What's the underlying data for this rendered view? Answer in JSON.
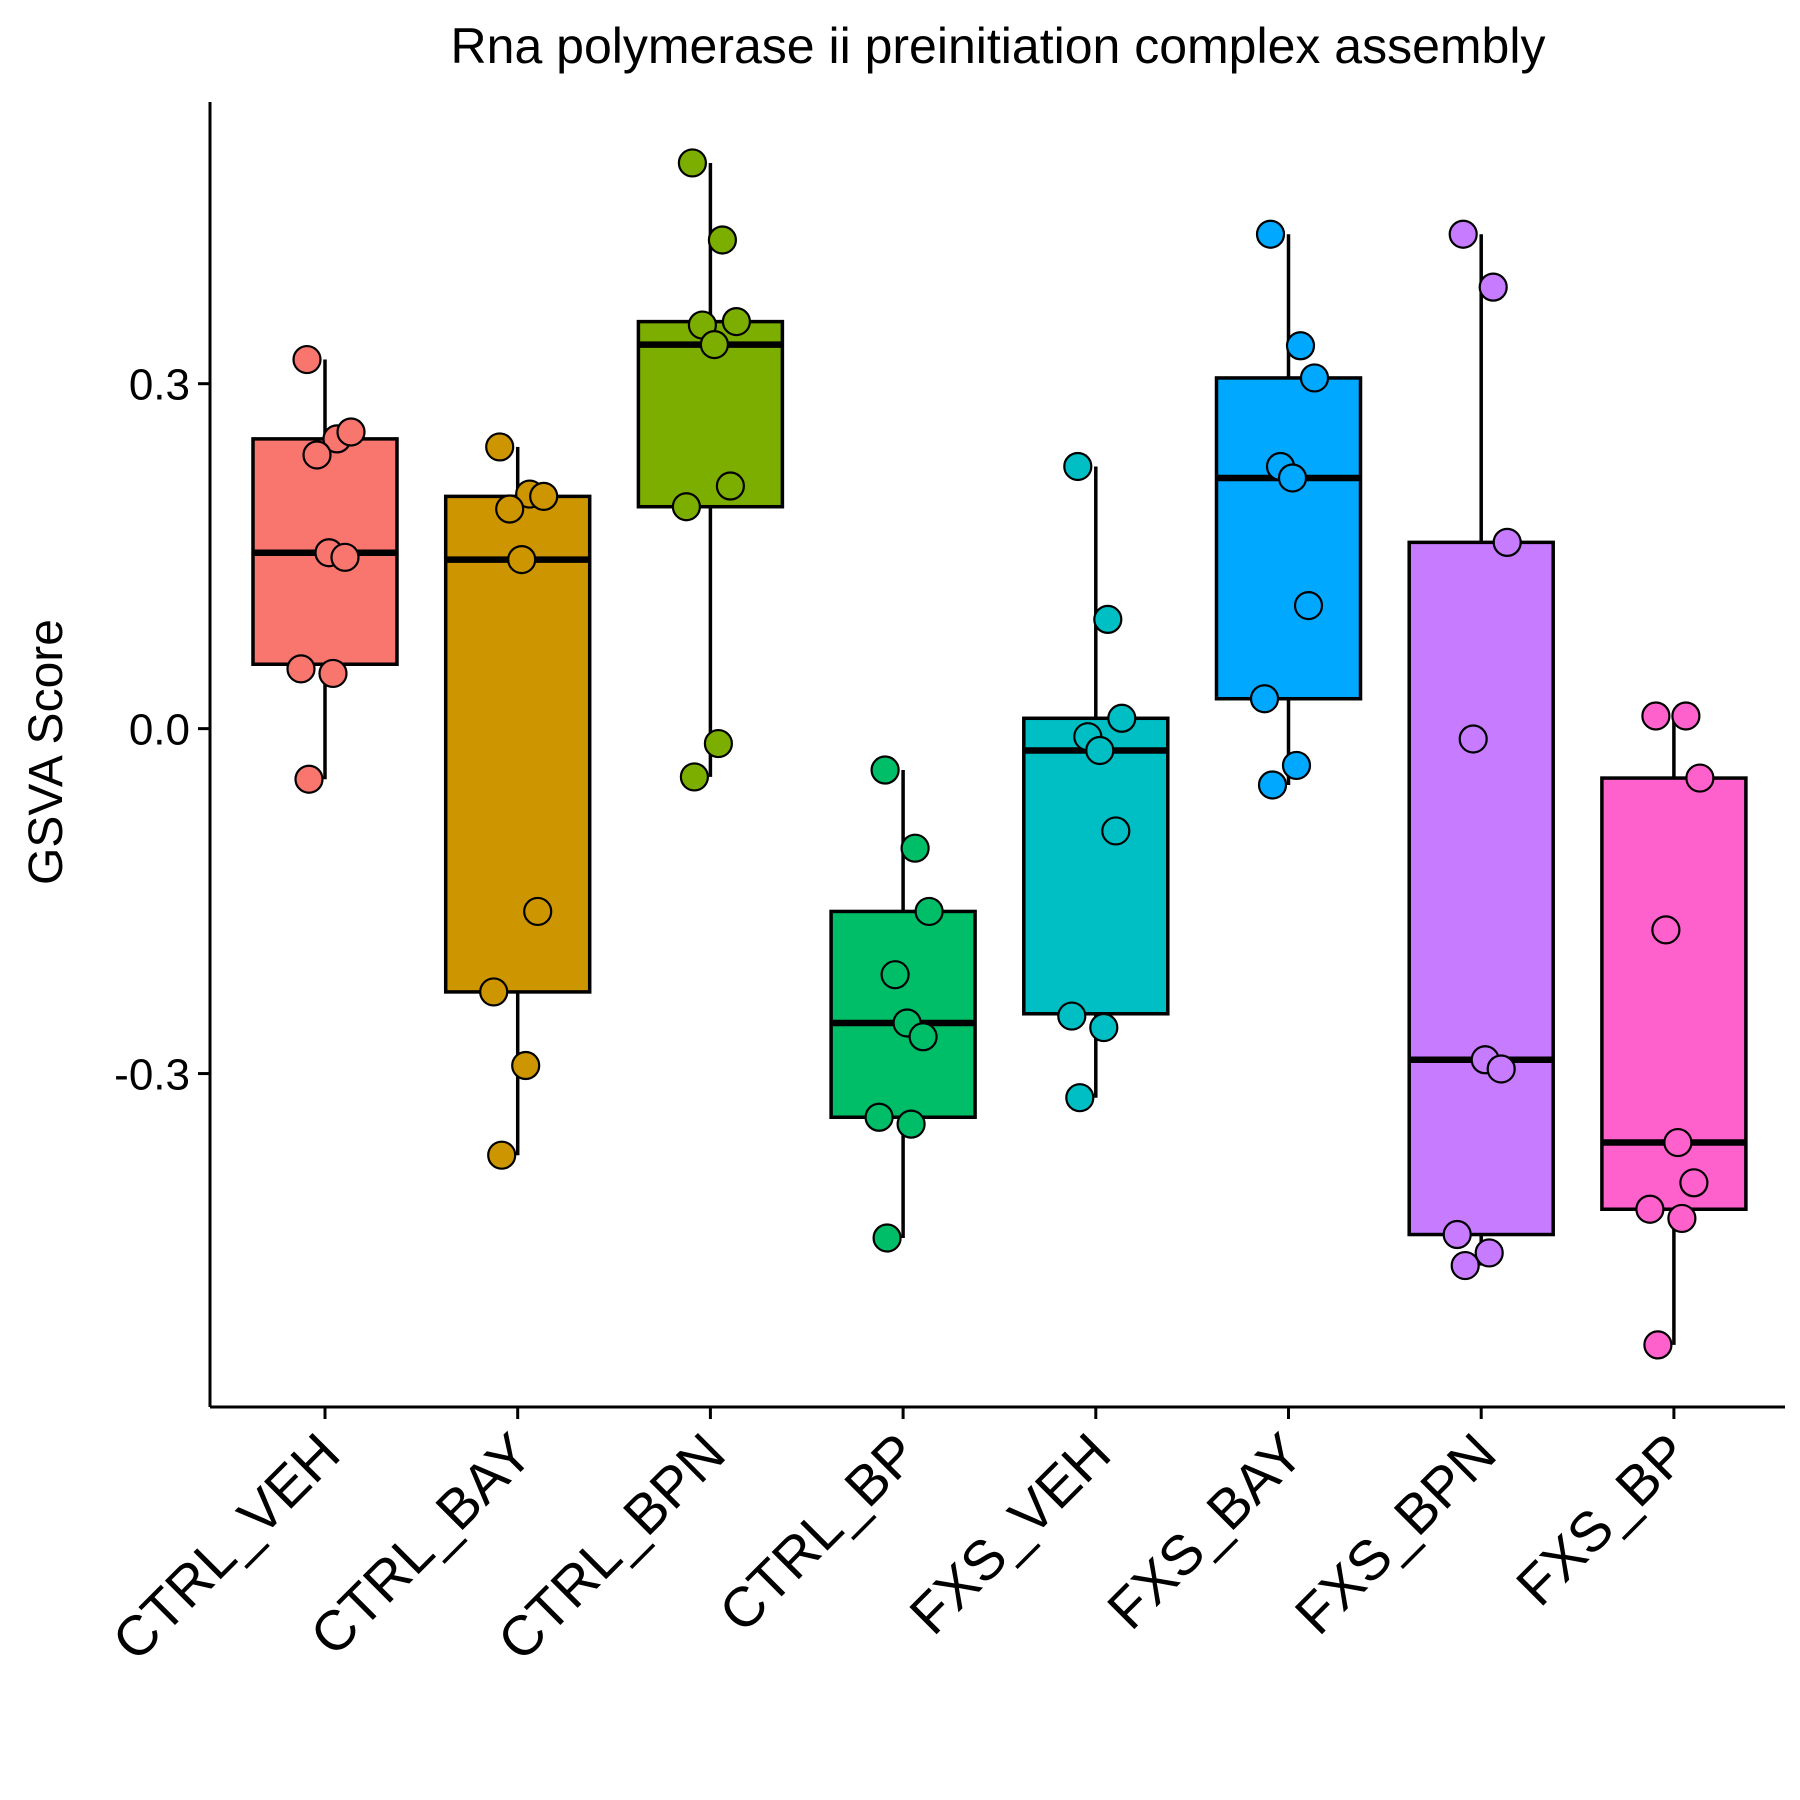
{
  "chart_data": {
    "type": "box",
    "title": "Rna polymerase ii preinitiation complex assembly",
    "xlabel": "",
    "ylabel": "GSVA Score",
    "ylim": [
      -0.59,
      0.545
    ],
    "yticks": [
      -0.3,
      0.0,
      0.3
    ],
    "ytick_labels": [
      "-0.3",
      "0.0",
      "0.3"
    ],
    "grid": false,
    "legend": "none",
    "categories": [
      "CTRL_VEH",
      "CTRL_BAY",
      "CTRL_BPN",
      "CTRL_BP",
      "FXS_VEH",
      "FXS_BAY",
      "FXS_BPN",
      "FXS_BP"
    ],
    "colors": [
      "#F8766D",
      "#CD9600",
      "#7CAE00",
      "#00BE67",
      "#00BFC4",
      "#00A9FF",
      "#C77CFF",
      "#FF61CC"
    ],
    "boxes": [
      {
        "whisker_low": -0.044,
        "q1": 0.056,
        "median": 0.153,
        "q3": 0.252,
        "whisker_high": 0.321
      },
      {
        "whisker_low": -0.371,
        "q1": -0.229,
        "median": 0.147,
        "q3": 0.202,
        "whisker_high": 0.245
      },
      {
        "whisker_low": -0.042,
        "q1": 0.193,
        "median": 0.334,
        "q3": 0.354,
        "whisker_high": 0.492
      },
      {
        "whisker_low": -0.443,
        "q1": -0.338,
        "median": -0.256,
        "q3": -0.159,
        "whisker_high": -0.036
      },
      {
        "whisker_low": -0.321,
        "q1": -0.248,
        "median": -0.019,
        "q3": 0.009,
        "whisker_high": 0.228
      },
      {
        "whisker_low": -0.049,
        "q1": 0.026,
        "median": 0.218,
        "q3": 0.305,
        "whisker_high": 0.43
      },
      {
        "whisker_low": -0.467,
        "q1": -0.44,
        "median": -0.288,
        "q3": 0.162,
        "whisker_high": 0.43
      },
      {
        "whisker_low": -0.536,
        "q1": -0.418,
        "median": -0.36,
        "q3": -0.043,
        "whisker_high": 0.011
      }
    ],
    "points": [
      [
        0.321,
        0.252,
        0.258,
        0.238,
        0.153,
        0.149,
        0.052,
        0.048,
        -0.044
      ],
      [
        0.245,
        0.204,
        0.202,
        0.191,
        0.147,
        -0.159,
        -0.229,
        -0.293,
        -0.371
      ],
      [
        0.492,
        0.425,
        0.354,
        0.351,
        0.334,
        0.211,
        0.193,
        -0.013,
        -0.042
      ],
      [
        -0.036,
        -0.104,
        -0.159,
        -0.214,
        -0.256,
        -0.268,
        -0.338,
        -0.344,
        -0.443
      ],
      [
        0.228,
        0.095,
        0.009,
        -0.007,
        -0.019,
        -0.089,
        -0.25,
        -0.26,
        -0.321
      ],
      [
        0.43,
        0.333,
        0.305,
        0.228,
        0.218,
        0.107,
        0.026,
        -0.032,
        -0.049
      ],
      [
        0.43,
        0.384,
        0.162,
        -0.009,
        -0.288,
        -0.296,
        -0.44,
        -0.456,
        -0.467
      ],
      [
        0.011,
        0.011,
        -0.043,
        -0.175,
        -0.36,
        -0.395,
        -0.418,
        -0.426,
        -0.536
      ]
    ]
  }
}
